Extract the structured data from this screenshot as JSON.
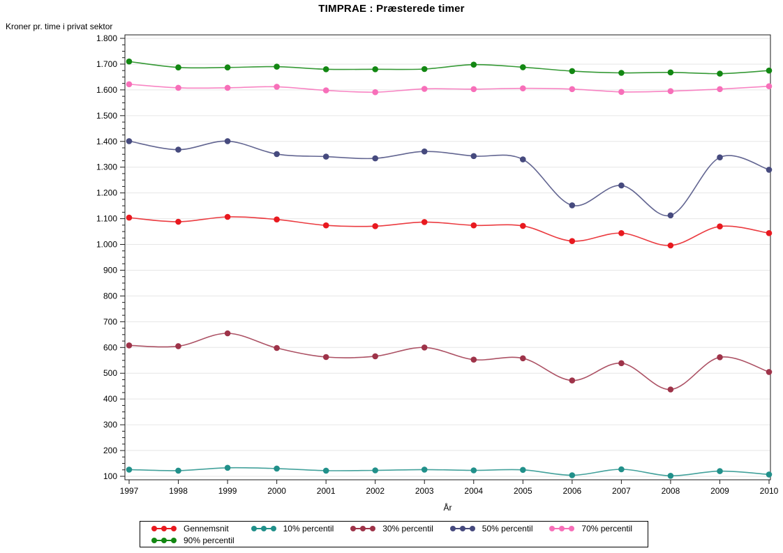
{
  "title": "TIMPRAE : Præsterede timer",
  "y_axis_label": "Kroner pr. time i privat sektor",
  "x_axis_label": "År",
  "chart_data": {
    "type": "line",
    "title": "TIMPRAE : Præsterede timer",
    "xlabel": "År",
    "ylabel": "Kroner pr. time i privat sektor",
    "x": [
      1997,
      1998,
      1999,
      2000,
      2001,
      2002,
      2003,
      2004,
      2005,
      2006,
      2007,
      2008,
      2009,
      2010
    ],
    "x_tick_labels": [
      "1997",
      "1998",
      "1999",
      "2000",
      "2001",
      "2002",
      "2003",
      "2004",
      "2005",
      "2006",
      "2007",
      "2008",
      "2009",
      "2010"
    ],
    "y_tick_values": [
      100,
      200,
      300,
      400,
      500,
      600,
      700,
      800,
      900,
      1000,
      1100,
      1200,
      1300,
      1400,
      1500,
      1600,
      1700,
      1800
    ],
    "y_tick_labels": [
      "100",
      "200",
      "300",
      "400",
      "500",
      "600",
      "700",
      "800",
      "900",
      "1.000",
      "1.100",
      "1.200",
      "1.300",
      "1.400",
      "1.500",
      "1.600",
      "1.700",
      "1.800"
    ],
    "ylim": [
      87,
      1813
    ],
    "y_major_step": 100,
    "y_minor_step": 25,
    "grid": "horizontal",
    "legend_position": "bottom",
    "series": [
      {
        "name": "Gennemsnit",
        "color": "#e8191f",
        "values": [
          1104,
          1088,
          1107,
          1097,
          1074,
          1071,
          1087,
          1074,
          1072,
          1013,
          1044,
          996,
          1070,
          1044
        ]
      },
      {
        "name": "10% percentil",
        "color": "#21908a",
        "values": [
          126,
          122,
          133,
          130,
          122,
          123,
          126,
          123,
          125,
          104,
          127,
          102,
          120,
          107
        ]
      },
      {
        "name": "30% percentil",
        "color": "#9e3349",
        "values": [
          608,
          605,
          655,
          598,
          563,
          566,
          600,
          553,
          558,
          472,
          539,
          437,
          562,
          505
        ]
      },
      {
        "name": "50% percentil",
        "color": "#464a7e",
        "values": [
          1401,
          1368,
          1401,
          1351,
          1341,
          1334,
          1361,
          1343,
          1330,
          1152,
          1229,
          1113,
          1338,
          1290
        ]
      },
      {
        "name": "70% percentil",
        "color": "#f76fb9",
        "values": [
          1622,
          1608,
          1608,
          1612,
          1598,
          1591,
          1604,
          1603,
          1606,
          1603,
          1592,
          1595,
          1603,
          1614
        ]
      },
      {
        "name": "90% percentil",
        "color": "#128712",
        "values": [
          1710,
          1687,
          1687,
          1690,
          1680,
          1680,
          1681,
          1698,
          1688,
          1673,
          1666,
          1668,
          1663,
          1675
        ]
      }
    ]
  }
}
